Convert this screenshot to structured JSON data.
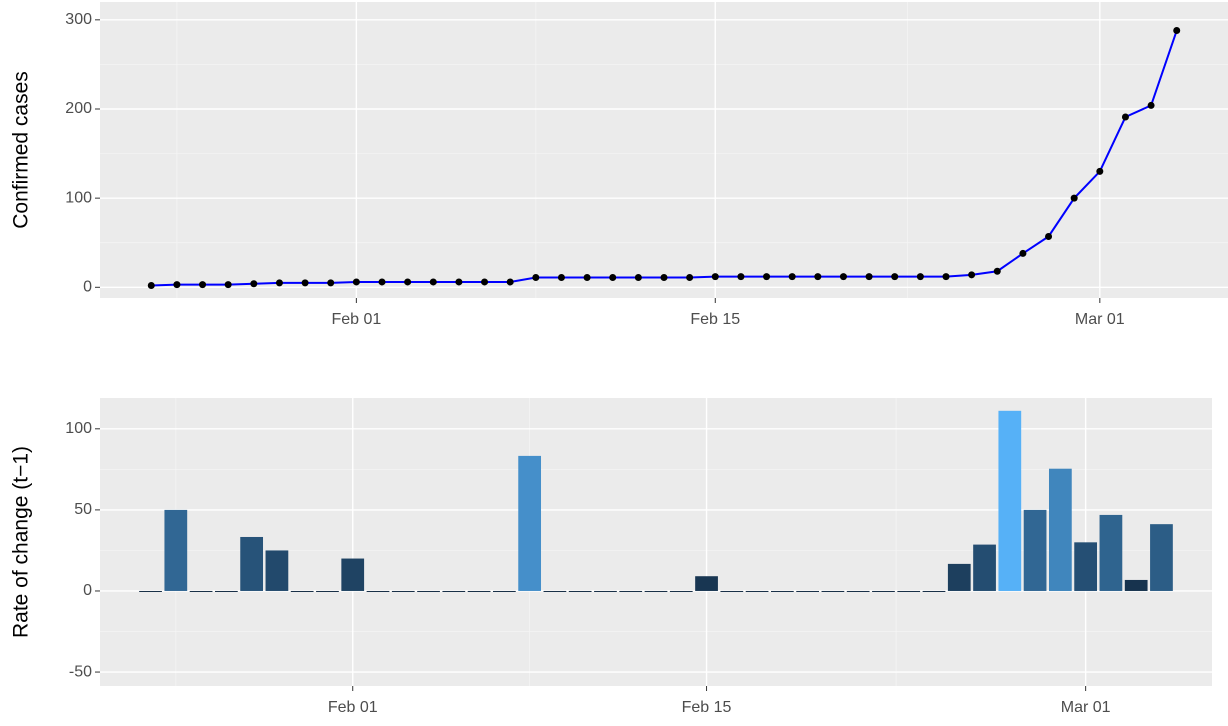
{
  "chart_data": [
    {
      "type": "line",
      "y_label": "Confirmed cases",
      "line_color": "#0000FF",
      "point_color": "#000000",
      "x": [
        "Jan 24",
        "Jan 25",
        "Jan 26",
        "Jan 27",
        "Jan 28",
        "Jan 29",
        "Jan 30",
        "Jan 31",
        "Feb 01",
        "Feb 02",
        "Feb 03",
        "Feb 04",
        "Feb 05",
        "Feb 06",
        "Feb 07",
        "Feb 08",
        "Feb 09",
        "Feb 10",
        "Feb 11",
        "Feb 12",
        "Feb 13",
        "Feb 14",
        "Feb 15",
        "Feb 16",
        "Feb 17",
        "Feb 18",
        "Feb 19",
        "Feb 20",
        "Feb 21",
        "Feb 22",
        "Feb 23",
        "Feb 24",
        "Feb 25",
        "Feb 26",
        "Feb 27",
        "Feb 28",
        "Feb 29",
        "Mar 01",
        "Mar 02",
        "Mar 03",
        "Mar 04"
      ],
      "values": [
        2,
        3,
        3,
        3,
        4,
        5,
        5,
        5,
        6,
        6,
        6,
        6,
        6,
        6,
        6,
        11,
        11,
        11,
        11,
        11,
        11,
        11,
        12,
        12,
        12,
        12,
        12,
        12,
        12,
        12,
        12,
        12,
        14,
        18,
        38,
        57,
        100,
        130,
        191,
        204,
        288
      ],
      "xlim": [
        "Jan 22",
        "Mar 06"
      ],
      "xticks": [
        "Feb 01",
        "Feb 15",
        "Mar 01"
      ],
      "ylim": [
        -12,
        320
      ],
      "yticks": [
        0,
        100,
        200,
        300
      ],
      "grid": true
    },
    {
      "type": "bar",
      "y_label": "Rate of change (t−1)",
      "color_scale": [
        "#132B43",
        "#56B1F7"
      ],
      "x": [
        "Jan 24",
        "Jan 25",
        "Jan 26",
        "Jan 27",
        "Jan 28",
        "Jan 29",
        "Jan 30",
        "Jan 31",
        "Feb 01",
        "Feb 02",
        "Feb 03",
        "Feb 04",
        "Feb 05",
        "Feb 06",
        "Feb 07",
        "Feb 08",
        "Feb 09",
        "Feb 10",
        "Feb 11",
        "Feb 12",
        "Feb 13",
        "Feb 14",
        "Feb 15",
        "Feb 16",
        "Feb 17",
        "Feb 18",
        "Feb 19",
        "Feb 20",
        "Feb 21",
        "Feb 22",
        "Feb 23",
        "Feb 24",
        "Feb 25",
        "Feb 26",
        "Feb 27",
        "Feb 28",
        "Feb 29",
        "Mar 01",
        "Mar 02",
        "Mar 03",
        "Mar 04"
      ],
      "values": [
        0,
        50,
        0,
        0,
        33.3,
        25,
        0,
        0,
        20,
        0,
        0,
        0,
        0,
        0,
        0,
        83.3,
        0,
        0,
        0,
        0,
        0,
        0,
        9.1,
        0,
        0,
        0,
        0,
        0,
        0,
        0,
        0,
        0,
        16.7,
        28.6,
        111.1,
        50,
        75.4,
        30,
        46.9,
        6.8,
        41.2
      ],
      "xlim": [
        "Jan 22",
        "Mar 06"
      ],
      "xticks": [
        "Feb 01",
        "Feb 15",
        "Mar 01"
      ],
      "ylim": [
        -58.6,
        119
      ],
      "yticks": [
        -50,
        0,
        50,
        100
      ],
      "grid": true
    }
  ]
}
